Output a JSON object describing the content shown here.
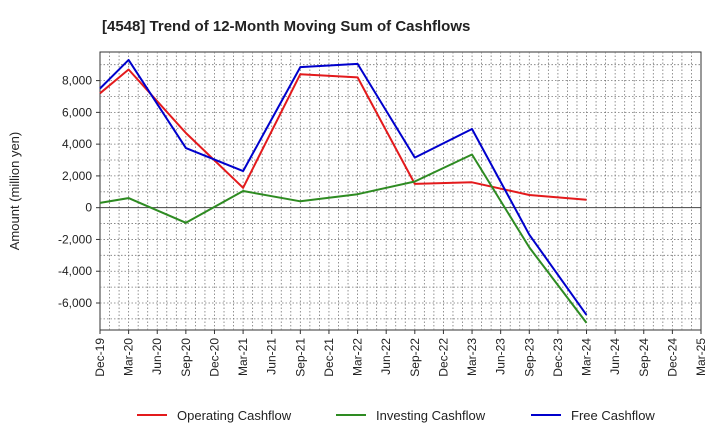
{
  "chart_data": {
    "type": "line",
    "title": "[4548]  Trend of 12-Month Moving Sum of Cashflows",
    "xlabel": "",
    "ylabel": "Amount (million yen)",
    "categories": [
      "Dec-19",
      "Mar-20",
      "Jun-20",
      "Sep-20",
      "Dec-20",
      "Mar-21",
      "Jun-21",
      "Sep-21",
      "Dec-21",
      "Mar-22",
      "Jun-22",
      "Sep-22",
      "Dec-22",
      "Mar-23",
      "Jun-23",
      "Sep-23",
      "Dec-23",
      "Mar-24",
      "Jun-24",
      "Sep-24",
      "Dec-24",
      "Mar-25"
    ],
    "ylim": [
      -7700,
      9800
    ],
    "yticks": [
      -6000,
      -4000,
      -2000,
      0,
      2000,
      4000,
      6000,
      8000
    ],
    "ytick_labels": [
      "-6,000",
      "-4,000",
      "-2,000",
      "0",
      "2,000",
      "4,000",
      "6,000",
      "8,000"
    ],
    "grid": true,
    "legend_position": "bottom",
    "series": [
      {
        "name": "Operating Cashflow",
        "color": "#e31a1c",
        "values": [
          7200,
          8700,
          null,
          4700,
          null,
          1250,
          null,
          8400,
          null,
          8200,
          null,
          1500,
          null,
          1600,
          null,
          800,
          null,
          500,
          null,
          null,
          null,
          null
        ]
      },
      {
        "name": "Investing Cashflow",
        "color": "#2e8b22",
        "values": [
          300,
          600,
          null,
          -950,
          null,
          1050,
          null,
          400,
          null,
          850,
          null,
          1650,
          null,
          3350,
          null,
          -2500,
          null,
          -7250,
          null,
          null,
          null,
          null
        ]
      },
      {
        "name": "Free Cashflow",
        "color": "#0000cc",
        "values": [
          7500,
          9300,
          null,
          3750,
          null,
          2300,
          null,
          8850,
          null,
          9050,
          null,
          3150,
          null,
          4950,
          null,
          -1700,
          null,
          -6750,
          null,
          null,
          null,
          null
        ]
      }
    ]
  }
}
